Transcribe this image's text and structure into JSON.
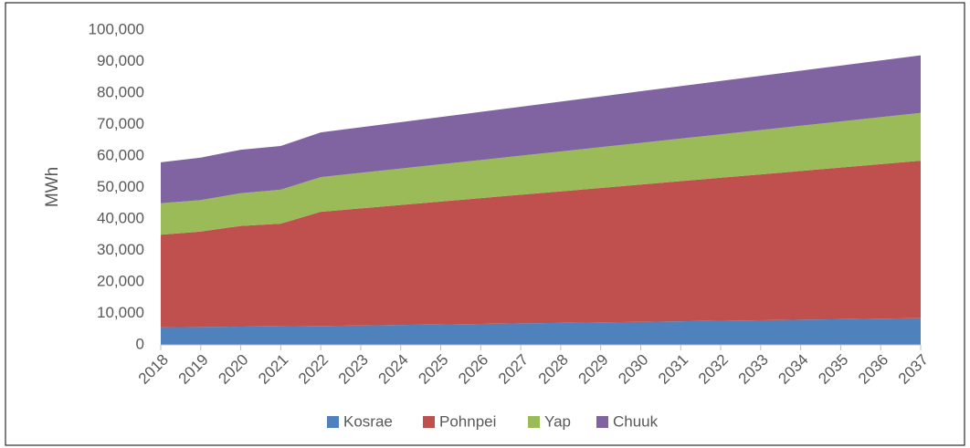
{
  "chart_data": {
    "type": "stacked-area",
    "y_label": "MWh",
    "categories": [
      "2018",
      "2019",
      "2020",
      "2021",
      "2022",
      "2023",
      "2024",
      "2025",
      "2026",
      "2027",
      "2028",
      "2029",
      "2030",
      "2031",
      "2032",
      "2033",
      "2034",
      "2035",
      "2036",
      "2037"
    ],
    "series": [
      {
        "name": "Kosrae",
        "color": "#4f81bd",
        "values": [
          5600,
          5700,
          5800,
          5900,
          6000,
          6170,
          6330,
          6500,
          6670,
          6830,
          7000,
          7170,
          7330,
          7500,
          7670,
          7830,
          8000,
          8170,
          8330,
          8500
        ]
      },
      {
        "name": "Pohnpei",
        "color": "#c0504d",
        "values": [
          29400,
          30300,
          32000,
          32600,
          36300,
          37210,
          38130,
          39040,
          39950,
          40870,
          41780,
          42690,
          43610,
          44520,
          45430,
          46350,
          47260,
          48170,
          49090,
          50000
        ]
      },
      {
        "name": "Yap",
        "color": "#9bbb59",
        "values": [
          10000,
          10000,
          10400,
          10800,
          11000,
          11280,
          11560,
          11840,
          12120,
          12400,
          12680,
          12960,
          13240,
          13520,
          13800,
          14080,
          14360,
          14640,
          14920,
          15200
        ]
      },
      {
        "name": "Chuuk",
        "color": "#8064a2",
        "values": [
          13000,
          13500,
          13800,
          13900,
          14200,
          14470,
          14750,
          15020,
          15290,
          15570,
          15840,
          16110,
          16390,
          16660,
          16930,
          17210,
          17480,
          17750,
          18030,
          18300
        ]
      }
    ],
    "ylim": [
      0,
      100000
    ],
    "yticks": [
      0,
      {
        "value": 10000,
        "label": "10,000"
      },
      {
        "value": 20000,
        "label": "20,000"
      },
      {
        "value": 30000,
        "label": "30,000"
      },
      {
        "value": 40000,
        "label": "40,000"
      },
      {
        "value": 50000,
        "label": "50,000"
      },
      {
        "value": 60000,
        "label": "60,000"
      },
      {
        "value": 70000,
        "label": "70,000"
      },
      {
        "value": 80000,
        "label": "80,000"
      },
      {
        "value": 90000,
        "label": "90,000"
      },
      {
        "value": 100000,
        "label": "100,000"
      }
    ],
    "grid": false,
    "legend": "bottom"
  }
}
